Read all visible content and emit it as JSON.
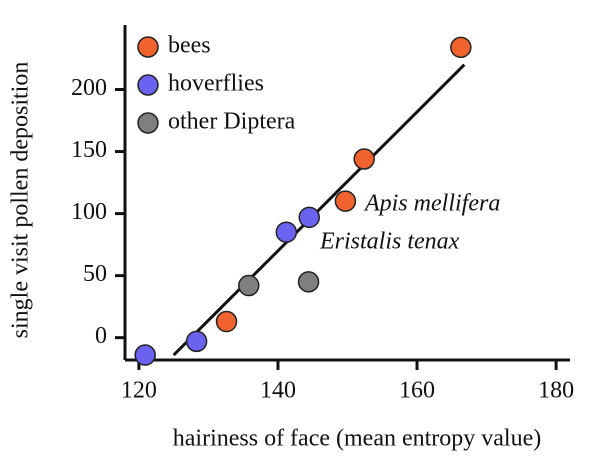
{
  "chart_data": {
    "type": "scatter",
    "xlabel": "hairiness of face (mean entropy value)",
    "ylabel": "single visit pollen deposition",
    "xlim": [
      118,
      182
    ],
    "ylim": [
      -18,
      252
    ],
    "xticks": [
      120,
      140,
      160,
      180
    ],
    "yticks": [
      0,
      50,
      100,
      150,
      200
    ],
    "legend": "upper left",
    "series": [
      {
        "name": "bees",
        "color": "#f0622e",
        "x": [
          132.6,
          149.7,
          152.4,
          166.3
        ],
        "values": [
          13,
          110,
          144,
          234
        ]
      },
      {
        "name": "hoverflies",
        "color": "#6b63f0",
        "x": [
          120.9,
          128.3,
          141.2,
          144.5
        ],
        "values": [
          -14,
          -3,
          85,
          97
        ]
      },
      {
        "name": "other Diptera",
        "color": "#7f7f7f",
        "x": [
          135.8,
          144.4
        ],
        "values": [
          42,
          45
        ]
      }
    ],
    "fit_line": {
      "x": [
        125,
        166.8
      ],
      "values": [
        -14,
        220
      ]
    },
    "annotations": [
      "Apis mellifera",
      "Eristalis tenax"
    ]
  }
}
